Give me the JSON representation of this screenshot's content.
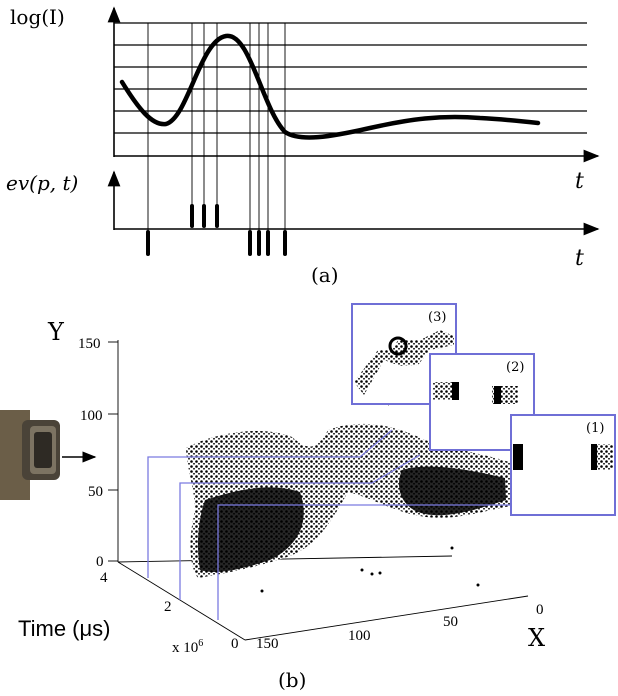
{
  "panel_a": {
    "ylabel_top": "log(I)",
    "ylabel_bottom": "ev(p, t)",
    "xlabel_top": "t",
    "xlabel_bottom": "t",
    "caption": "(a)"
  },
  "panel_b": {
    "caption": "(b)",
    "axis_y_label": "Y",
    "axis_x_label": "X",
    "axis_time_label": "Time (μs)",
    "y_ticks": [
      "150",
      "100",
      "50",
      "0"
    ],
    "time_ticks": [
      "4",
      "2",
      "0"
    ],
    "time_multiplier": "x 10",
    "time_exponent": "6",
    "x_ticks": [
      "150",
      "100",
      "50",
      "0"
    ],
    "inset_labels": [
      "(3)",
      "(2)",
      "(1)"
    ],
    "inset_border_color": "#6f6fd6"
  }
}
